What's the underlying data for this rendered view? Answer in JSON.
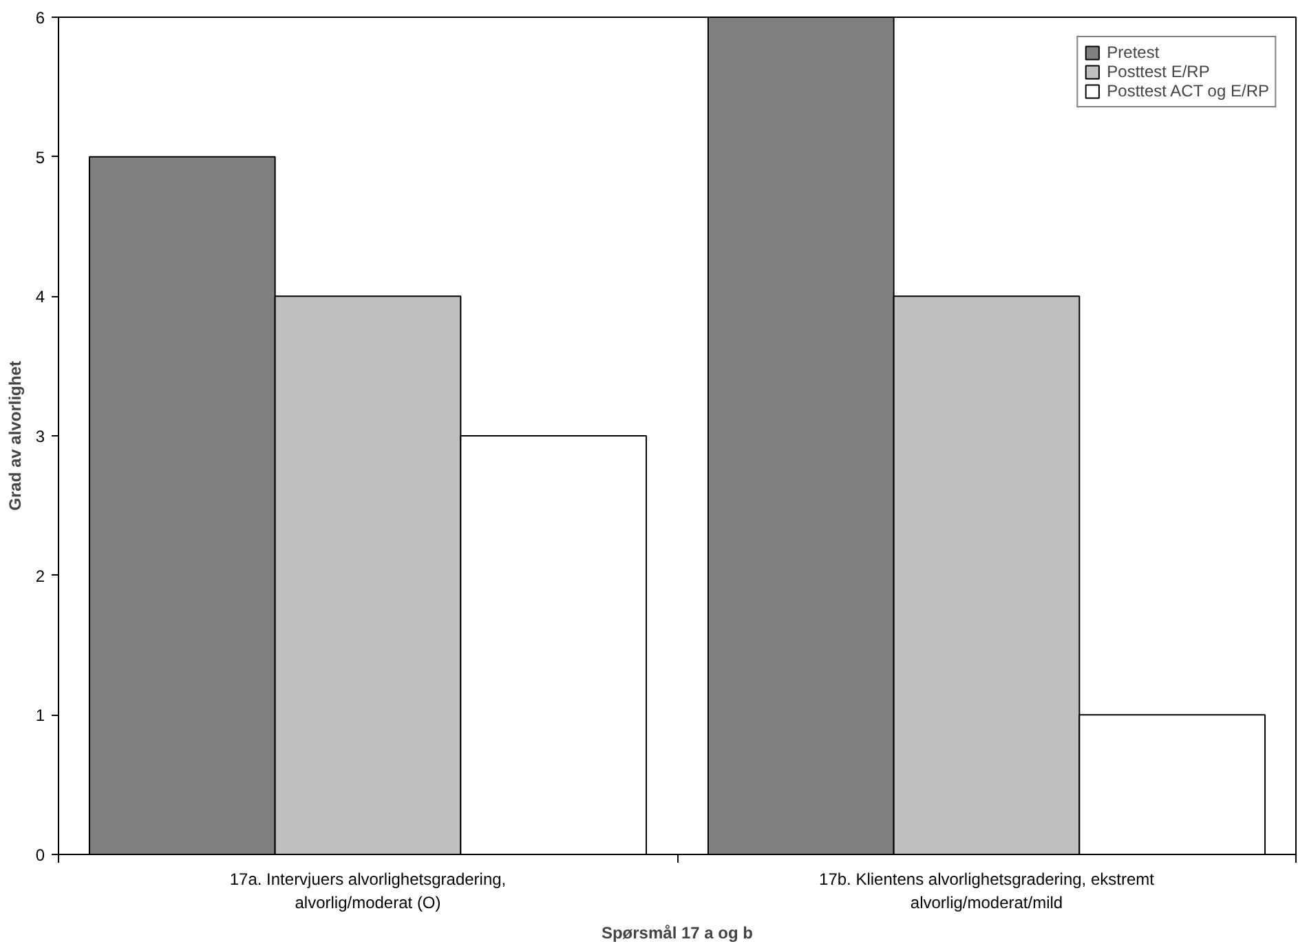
{
  "chart_data": {
    "type": "bar",
    "categories": [
      "17a. Intervjuers alvorlighetsgradering,\nalvorlig/moderat (O)",
      "17b. Klientens alvorlighetsgradering, ekstremt\nalvorlig/moderat/mild"
    ],
    "series": [
      {
        "name": "Pretest",
        "color": "#808080",
        "values": [
          5,
          6
        ]
      },
      {
        "name": "Posttest E/RP",
        "color": "#c0c0c0",
        "values": [
          4,
          4
        ]
      },
      {
        "name": "Posttest ACT og E/RP",
        "color": "#ffffff",
        "values": [
          3,
          1
        ]
      }
    ],
    "xlabel": "Spørsmål 17 a og b",
    "ylabel": "Grad av alvorlighet",
    "ylim": [
      0,
      6
    ],
    "yticks": [
      0,
      1,
      2,
      3,
      4,
      5,
      6
    ],
    "grid": false,
    "legend": "top right"
  }
}
